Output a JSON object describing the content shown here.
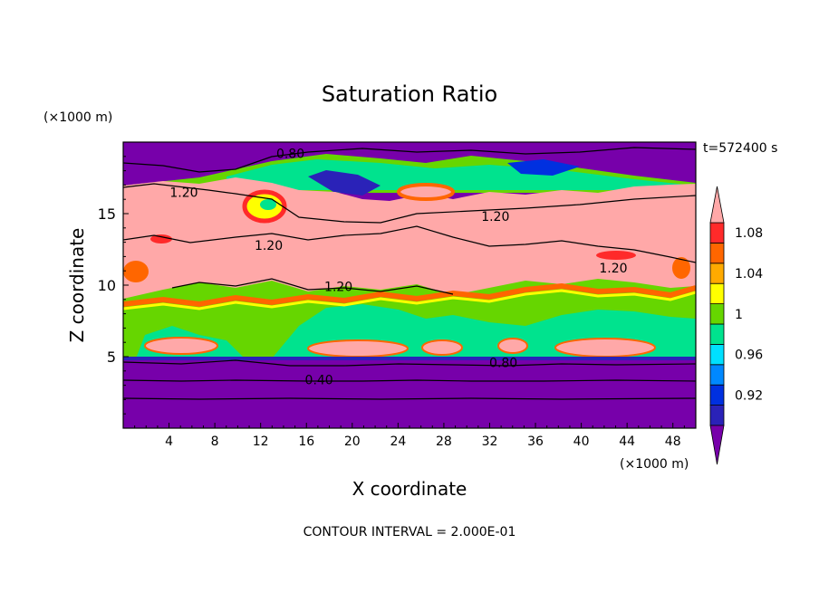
{
  "chart_data": {
    "type": "heatmap",
    "title": "Saturation Ratio",
    "xlabel": "X coordinate",
    "ylabel": "Z coordinate",
    "x_unit": "(×1000 m)",
    "y_unit": "(×1000 m)",
    "time_label": "t=572400 s",
    "footer": "CONTOUR INTERVAL = 2.000E-01",
    "xlim": [
      0,
      50
    ],
    "ylim": [
      0,
      20
    ],
    "x_ticks": [
      4,
      8,
      12,
      16,
      20,
      24,
      28,
      32,
      36,
      40,
      44,
      48
    ],
    "y_ticks": [
      5,
      10,
      15
    ],
    "colorbar": {
      "levels": [
        0.9,
        0.92,
        0.94,
        0.96,
        0.98,
        1.0,
        1.02,
        1.04,
        1.06,
        1.08,
        1.1
      ],
      "tick_labels": [
        "0.92",
        "0.96",
        "1",
        "1.04",
        "1.08"
      ],
      "tick_values": [
        0.92,
        0.96,
        1.0,
        1.04,
        1.08
      ],
      "colors": [
        "#7700aa",
        "#2a22b8",
        "#0030e0",
        "#0088ff",
        "#00e0ff",
        "#00e38e",
        "#66d600",
        "#ffff00",
        "#ffaa00",
        "#ff6600",
        "#ff2a2a",
        "#ffa8a8"
      ],
      "extend": "both"
    },
    "contour_labels": [
      {
        "text": "0.80",
        "x": 14.6,
        "z": 19.2
      },
      {
        "text": "1.20",
        "x": 5.3,
        "z": 16.5
      },
      {
        "text": "1.20",
        "x": 32.5,
        "z": 14.8
      },
      {
        "text": "1.20",
        "x": 12.7,
        "z": 12.8
      },
      {
        "text": "1.20",
        "x": 42.8,
        "z": 11.2
      },
      {
        "text": "1.20",
        "x": 18.8,
        "z": 9.9
      },
      {
        "text": "0.80",
        "x": 33.2,
        "z": 4.6
      },
      {
        "text": "0.40",
        "x": 17.1,
        "z": 3.4
      }
    ]
  }
}
